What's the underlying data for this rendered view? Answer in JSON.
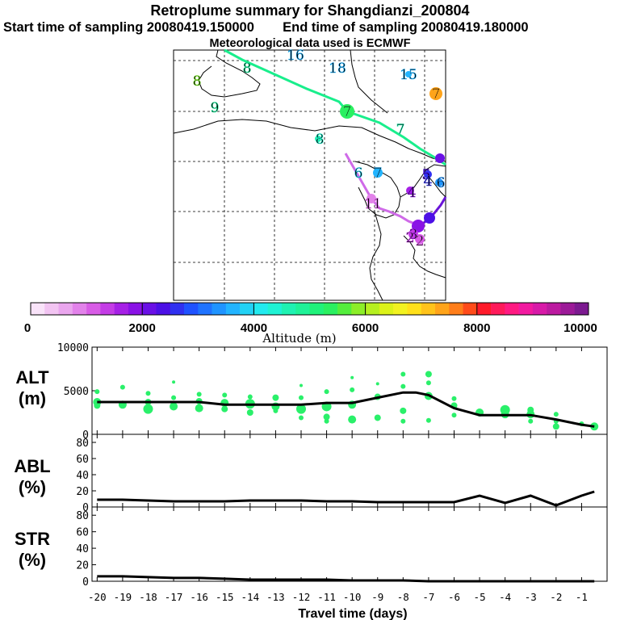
{
  "header": {
    "title": "Retroplume summary for Shangdianzi_200804",
    "start_label": "Start time of sampling 20080419.150000",
    "end_label": "End time of sampling 20080419.180000",
    "met_label": "Meteorological data used is ECMWF"
  },
  "colors": {
    "background": "#ffffff",
    "axis": "#000000",
    "plume_main": "#19ee8c",
    "plume_low": "#cf6ae8",
    "plume_dark": "#6a14d9",
    "alt_points": "#2af06a",
    "line": "#000000"
  },
  "colorbar": {
    "label": "Altitude (m)",
    "tick_labels": [
      "0",
      "2000",
      "4000",
      "6000",
      "8000",
      "10000"
    ],
    "min": 0,
    "max": 10000,
    "colors": [
      "#f9e3f9",
      "#f2c4f2",
      "#eaa6ee",
      "#e282ea",
      "#d85ce6",
      "#c43ce6",
      "#a620e6",
      "#8a12e6",
      "#6a10e6",
      "#4c10e6",
      "#3030f0",
      "#1f52ff",
      "#1f73ff",
      "#1f94ff",
      "#22b4ff",
      "#22d2f5",
      "#22eaef",
      "#1ff2d4",
      "#1ff2b2",
      "#1ff298",
      "#1ff27a",
      "#2af060",
      "#54ee3c",
      "#8cee28",
      "#b6f020",
      "#dcf218",
      "#f2f220",
      "#ffe01a",
      "#ffc31a",
      "#ffa41a",
      "#ff7e1a",
      "#ff4b1a",
      "#ff1a2a",
      "#ff1a5a",
      "#ff1a82",
      "#f21aa0",
      "#d81aa8",
      "#bc1aa0",
      "#9c1a98",
      "#7c1a90"
    ]
  },
  "map": {
    "labels": [
      {
        "text": "8",
        "color": "#7ef02a"
      },
      {
        "text": "9",
        "color": "#1ff2a0"
      },
      {
        "text": "8",
        "color": "#1ff2d0"
      },
      {
        "text": "8",
        "color": "#1ff2a0"
      },
      {
        "text": "16",
        "color": "#22b4ff"
      },
      {
        "text": "18",
        "color": "#22b4ff"
      },
      {
        "text": "15",
        "color": "#22b4ff"
      },
      {
        "text": "7",
        "color": "#ffa41a"
      },
      {
        "text": "7",
        "color": "#2af060"
      },
      {
        "text": "7",
        "color": "#1ff2b2"
      },
      {
        "text": "6",
        "color": "#22d2f5"
      },
      {
        "text": "7",
        "color": "#22b4ff"
      },
      {
        "text": "5",
        "color": "#4c10e6"
      },
      {
        "text": "4",
        "color": "#3030f0"
      },
      {
        "text": "6",
        "color": "#1f94ff"
      },
      {
        "text": "11",
        "color": "#d85ce6"
      },
      {
        "text": "4",
        "color": "#8a12e6"
      },
      {
        "text": "3",
        "color": "#a620e6"
      },
      {
        "text": "2",
        "color": "#c43ce6"
      },
      {
        "text": "2",
        "color": "#d85ce6"
      }
    ]
  },
  "chart_data": [
    {
      "type": "scatter",
      "name": "ALT",
      "ylabel_top": "ALT",
      "ylabel_bottom": "(m)",
      "ylim": [
        0,
        10000
      ],
      "yticks": [
        "0",
        "5000",
        "10000"
      ],
      "ytick_values": [
        0,
        5000,
        10000
      ],
      "median_line": {
        "x": [
          -20,
          -19,
          -18,
          -17,
          -16,
          -15,
          -14,
          -13,
          -12,
          -11,
          -10,
          -9,
          -8,
          -7.5,
          -7,
          -6,
          -5,
          -4,
          -3,
          -2,
          -1,
          -0.5
        ],
        "y": [
          3700,
          3700,
          3700,
          3700,
          3700,
          3400,
          3400,
          3400,
          3400,
          3600,
          3600,
          4200,
          4800,
          4800,
          4500,
          3000,
          2200,
          2200,
          2200,
          1700,
          1100,
          900
        ]
      },
      "points": [
        {
          "x": -20,
          "y": 4900,
          "s": 3
        },
        {
          "x": -20,
          "y": 3700,
          "s": 5
        },
        {
          "x": -20,
          "y": 3300,
          "s": 4
        },
        {
          "x": -19,
          "y": 5400,
          "s": 3
        },
        {
          "x": -19,
          "y": 3400,
          "s": 5
        },
        {
          "x": -18,
          "y": 4700,
          "s": 3
        },
        {
          "x": -18,
          "y": 3700,
          "s": 4
        },
        {
          "x": -18,
          "y": 2900,
          "s": 6
        },
        {
          "x": -17,
          "y": 6000,
          "s": 2
        },
        {
          "x": -17,
          "y": 4200,
          "s": 3
        },
        {
          "x": -17,
          "y": 3200,
          "s": 5
        },
        {
          "x": -16,
          "y": 4600,
          "s": 3
        },
        {
          "x": -16,
          "y": 3800,
          "s": 4
        },
        {
          "x": -16,
          "y": 3000,
          "s": 5
        },
        {
          "x": -15,
          "y": 4500,
          "s": 3
        },
        {
          "x": -15,
          "y": 3600,
          "s": 5
        },
        {
          "x": -15,
          "y": 2900,
          "s": 4
        },
        {
          "x": -14,
          "y": 4300,
          "s": 3
        },
        {
          "x": -14,
          "y": 3500,
          "s": 6
        },
        {
          "x": -14,
          "y": 2500,
          "s": 4
        },
        {
          "x": -13,
          "y": 4200,
          "s": 4
        },
        {
          "x": -13,
          "y": 3200,
          "s": 5
        },
        {
          "x": -13,
          "y": 2700,
          "s": 3
        },
        {
          "x": -12,
          "y": 5600,
          "s": 2
        },
        {
          "x": -12,
          "y": 4200,
          "s": 3
        },
        {
          "x": -12,
          "y": 2900,
          "s": 6
        },
        {
          "x": -12,
          "y": 1900,
          "s": 3
        },
        {
          "x": -11,
          "y": 4900,
          "s": 3
        },
        {
          "x": -11,
          "y": 3200,
          "s": 6
        },
        {
          "x": -11,
          "y": 2000,
          "s": 4
        },
        {
          "x": -11,
          "y": 1500,
          "s": 3
        },
        {
          "x": -10,
          "y": 6500,
          "s": 2
        },
        {
          "x": -10,
          "y": 5100,
          "s": 3
        },
        {
          "x": -10,
          "y": 3400,
          "s": 5
        },
        {
          "x": -10,
          "y": 1700,
          "s": 5
        },
        {
          "x": -9,
          "y": 5800,
          "s": 2
        },
        {
          "x": -9,
          "y": 4300,
          "s": 4
        },
        {
          "x": -9,
          "y": 1900,
          "s": 4
        },
        {
          "x": -8,
          "y": 6900,
          "s": 3
        },
        {
          "x": -8,
          "y": 5500,
          "s": 3
        },
        {
          "x": -8,
          "y": 2700,
          "s": 4
        },
        {
          "x": -8,
          "y": 1500,
          "s": 3
        },
        {
          "x": -7,
          "y": 6900,
          "s": 4
        },
        {
          "x": -7,
          "y": 5900,
          "s": 3
        },
        {
          "x": -7,
          "y": 4400,
          "s": 5
        },
        {
          "x": -7,
          "y": 1600,
          "s": 3
        },
        {
          "x": -6,
          "y": 4100,
          "s": 3
        },
        {
          "x": -6,
          "y": 3300,
          "s": 4
        },
        {
          "x": -6,
          "y": 2200,
          "s": 3
        },
        {
          "x": -5,
          "y": 2500,
          "s": 5
        },
        {
          "x": -4,
          "y": 2800,
          "s": 6
        },
        {
          "x": -4,
          "y": 2300,
          "s": 5
        },
        {
          "x": -3,
          "y": 2800,
          "s": 4
        },
        {
          "x": -3,
          "y": 2300,
          "s": 5
        },
        {
          "x": -3,
          "y": 1500,
          "s": 3
        },
        {
          "x": -2,
          "y": 2300,
          "s": 3
        },
        {
          "x": -2,
          "y": 1500,
          "s": 3
        },
        {
          "x": -2,
          "y": 900,
          "s": 4
        },
        {
          "x": -1,
          "y": 1200,
          "s": 3
        },
        {
          "x": -0.5,
          "y": 900,
          "s": 5
        }
      ]
    },
    {
      "type": "line",
      "name": "ABL",
      "ylabel_top": "ABL",
      "ylabel_bottom": "(%)",
      "ylim": [
        0,
        90
      ],
      "yticks": [
        "0",
        "20",
        "40",
        "60",
        "80"
      ],
      "ytick_values": [
        0,
        20,
        40,
        60,
        80
      ],
      "x": [
        -20,
        -19,
        -18,
        -17,
        -16,
        -15,
        -14,
        -13,
        -12,
        -11,
        -10,
        -9,
        -8,
        -7,
        -6,
        -5,
        -4,
        -3,
        -2,
        -1,
        -0.5
      ],
      "y": [
        9,
        9,
        8,
        7,
        7,
        7,
        8,
        8,
        8,
        7,
        7,
        6,
        6,
        6,
        6,
        14,
        5,
        14,
        2,
        14,
        19
      ]
    },
    {
      "type": "line",
      "name": "STR",
      "ylabel_top": "STR",
      "ylabel_bottom": "(%)",
      "ylim": [
        0,
        90
      ],
      "yticks": [
        "0",
        "20",
        "40",
        "60",
        "80"
      ],
      "ytick_values": [
        0,
        20,
        40,
        60,
        80
      ],
      "x": [
        -20,
        -19,
        -18,
        -17,
        -16,
        -15,
        -14,
        -13,
        -12,
        -11,
        -10,
        -9,
        -8,
        -7,
        -6,
        -5,
        -4,
        -3,
        -2,
        -1,
        -0.5
      ],
      "y": [
        6,
        6,
        5,
        4,
        4,
        3,
        2,
        2,
        2,
        2,
        1,
        1,
        1,
        0,
        0,
        0,
        0,
        0,
        0,
        0,
        0
      ]
    }
  ],
  "xaxis": {
    "label": "Travel time (days)",
    "ticks": [
      "-20",
      "-19",
      "-18",
      "-17",
      "-16",
      "-15",
      "-14",
      "-13",
      "-12",
      "-11",
      "-10",
      "-9",
      "-8",
      "-7",
      "-6",
      "-5",
      "-4",
      "-3",
      "-2",
      "-1"
    ],
    "tick_values": [
      -20,
      -19,
      -18,
      -17,
      -16,
      -15,
      -14,
      -13,
      -12,
      -11,
      -10,
      -9,
      -8,
      -7,
      -6,
      -5,
      -4,
      -3,
      -2,
      -1
    ],
    "xlim": [
      -20.2,
      0
    ]
  }
}
